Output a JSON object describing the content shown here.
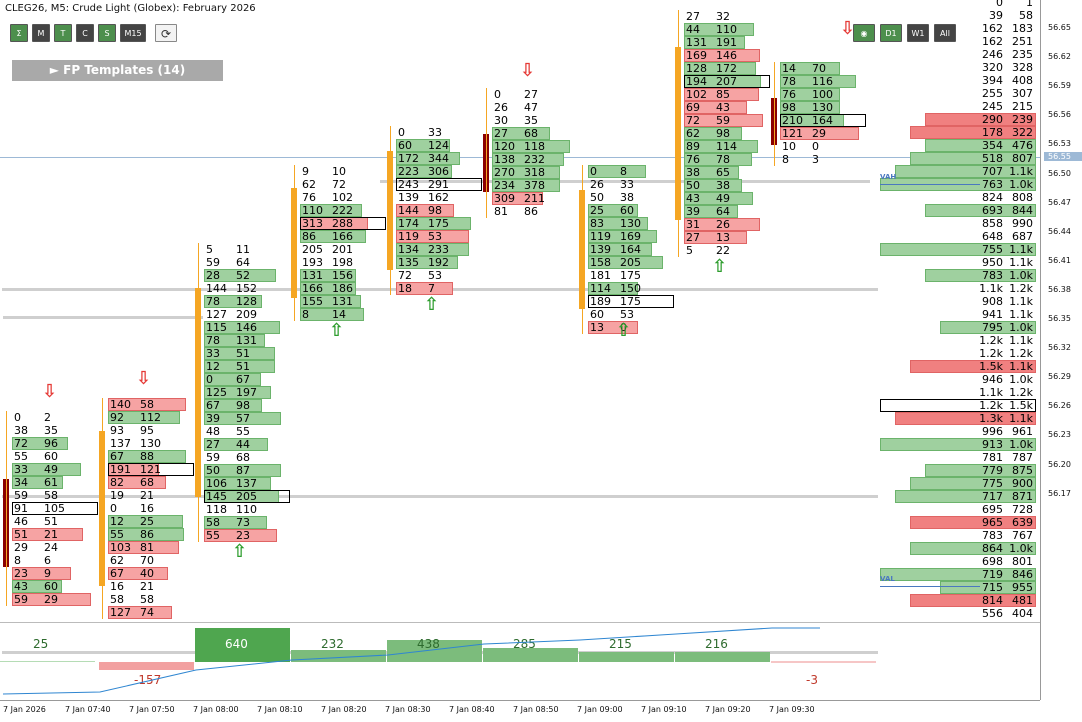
{
  "header": {
    "title": "CLEG26, M5:  Crude Light (Globex): February 2026"
  },
  "toolbar_left": [
    "Σ",
    "M",
    "T",
    "C",
    "S",
    "M15"
  ],
  "toolbar_right": [
    "◉",
    "D1",
    "W1",
    "All"
  ],
  "templates_button": "► FP Templates (14)",
  "price_axis": [
    "56.65",
    "56.62",
    "56.59",
    "56.56",
    "56.53",
    "56.50",
    "56.47",
    "56.44",
    "56.41",
    "56.38",
    "56.35",
    "56.32",
    "56.29",
    "56.26",
    "56.23",
    "56.20",
    "56.17"
  ],
  "current_price": "56.55",
  "time_axis": [
    "7 Jan 2026",
    "7 Jan 07:40",
    "7 Jan 07:50",
    "7 Jan 08:00",
    "7 Jan 08:10",
    "7 Jan 08:20",
    "7 Jan 08:30",
    "7 Jan 08:40",
    "7 Jan 08:50",
    "7 Jan 09:00",
    "7 Jan 09:10",
    "7 Jan 09:20",
    "7 Jan 09:30"
  ],
  "vah_label": "VAH",
  "val_label": "VAL",
  "colors": {
    "buy": "#5fae5f",
    "sell": "#e86060",
    "poc_line": "#000",
    "bar_body": "#f5a623",
    "down_bar": "#8b0000"
  },
  "candles": [
    {
      "cells": [
        [
          "0",
          "2"
        ],
        [
          "38",
          "35"
        ],
        [
          "72",
          "96"
        ],
        [
          "55",
          "60"
        ],
        [
          "33",
          "49"
        ],
        [
          "34",
          "61"
        ],
        [
          "59",
          "58"
        ],
        [
          "91",
          "105"
        ],
        [
          "46",
          "51"
        ],
        [
          "51",
          "21"
        ],
        [
          "29",
          "24"
        ],
        [
          "8",
          "6"
        ],
        [
          "23",
          "9"
        ],
        [
          "43",
          "60"
        ],
        [
          "59",
          "29"
        ]
      ]
    },
    {
      "cells": [
        [
          "140",
          "58"
        ],
        [
          "92",
          "112"
        ],
        [
          "93",
          "95"
        ],
        [
          "137",
          "130"
        ],
        [
          "67",
          "88"
        ],
        [
          "191",
          "121"
        ],
        [
          "82",
          "68"
        ],
        [
          "19",
          "21"
        ],
        [
          "0",
          "16"
        ],
        [
          "12",
          "25"
        ],
        [
          "55",
          "86"
        ],
        [
          "103",
          "81"
        ],
        [
          "62",
          "70"
        ],
        [
          "67",
          "40"
        ],
        [
          "16",
          "21"
        ],
        [
          "58",
          "58"
        ],
        [
          "127",
          "74"
        ]
      ]
    },
    {
      "cells": [
        [
          "5",
          "11"
        ],
        [
          "59",
          "64"
        ],
        [
          "28",
          "52"
        ],
        [
          "144",
          "152"
        ],
        [
          "78",
          "128"
        ],
        [
          "127",
          "209"
        ],
        [
          "115",
          "146"
        ],
        [
          "78",
          "131"
        ],
        [
          "33",
          "51"
        ],
        [
          "12",
          "51"
        ],
        [
          "0",
          "67"
        ],
        [
          "125",
          "197"
        ],
        [
          "67",
          "98"
        ],
        [
          "39",
          "57"
        ],
        [
          "48",
          "55"
        ],
        [
          "27",
          "44"
        ],
        [
          "59",
          "68"
        ],
        [
          "50",
          "87"
        ],
        [
          "106",
          "137"
        ],
        [
          "145",
          "205"
        ],
        [
          "118",
          "110"
        ],
        [
          "58",
          "73"
        ],
        [
          "55",
          "23"
        ]
      ]
    },
    {
      "cells": [
        [
          "9",
          "10"
        ],
        [
          "62",
          "72"
        ],
        [
          "76",
          "102"
        ],
        [
          "110",
          "222"
        ],
        [
          "313",
          "288"
        ],
        [
          "86",
          "166"
        ],
        [
          "205",
          "201"
        ],
        [
          "193",
          "198"
        ],
        [
          "131",
          "156"
        ],
        [
          "166",
          "186"
        ],
        [
          "155",
          "131"
        ],
        [
          "8",
          "14"
        ]
      ]
    },
    {
      "cells": [
        [
          "0",
          "33"
        ],
        [
          "60",
          "124"
        ],
        [
          "172",
          "344"
        ],
        [
          "223",
          "306"
        ],
        [
          "243",
          "291"
        ],
        [
          "139",
          "162"
        ],
        [
          "144",
          "98"
        ],
        [
          "174",
          "175"
        ],
        [
          "119",
          "53"
        ],
        [
          "134",
          "233"
        ],
        [
          "135",
          "192"
        ],
        [
          "72",
          "53"
        ],
        [
          "18",
          "7"
        ]
      ]
    },
    {
      "cells": [
        [
          "0",
          "27"
        ],
        [
          "26",
          "47"
        ],
        [
          "30",
          "35"
        ],
        [
          "27",
          "68"
        ],
        [
          "120",
          "118"
        ],
        [
          "138",
          "232"
        ],
        [
          "270",
          "318"
        ],
        [
          "234",
          "378"
        ],
        [
          "309",
          "211"
        ],
        [
          "81",
          "86"
        ]
      ]
    },
    {
      "cells": [
        [
          "0",
          "8"
        ],
        [
          "26",
          "33"
        ],
        [
          "50",
          "38"
        ],
        [
          "25",
          "60"
        ],
        [
          "83",
          "130"
        ],
        [
          "119",
          "169"
        ],
        [
          "139",
          "164"
        ],
        [
          "158",
          "205"
        ],
        [
          "181",
          "175"
        ],
        [
          "114",
          "150"
        ],
        [
          "189",
          "175"
        ],
        [
          "60",
          "53"
        ],
        [
          "13",
          "0"
        ]
      ]
    },
    {
      "cells": [
        [
          "27",
          "32"
        ],
        [
          "44",
          "110"
        ],
        [
          "131",
          "191"
        ],
        [
          "169",
          "146"
        ],
        [
          "128",
          "172"
        ],
        [
          "194",
          "207"
        ],
        [
          "102",
          "85"
        ],
        [
          "69",
          "43"
        ],
        [
          "72",
          "59"
        ],
        [
          "62",
          "98"
        ],
        [
          "89",
          "114"
        ],
        [
          "76",
          "78"
        ],
        [
          "38",
          "65"
        ],
        [
          "50",
          "38"
        ],
        [
          "43",
          "49"
        ],
        [
          "39",
          "64"
        ],
        [
          "31",
          "26"
        ],
        [
          "27",
          "13"
        ],
        [
          "5",
          "22"
        ]
      ]
    },
    {
      "cells": [
        [
          "14",
          "70"
        ],
        [
          "78",
          "116"
        ],
        [
          "76",
          "100"
        ],
        [
          "98",
          "130"
        ],
        [
          "210",
          "164"
        ],
        [
          "121",
          "29"
        ],
        [
          "10",
          "0"
        ],
        [
          "8",
          "3"
        ]
      ]
    }
  ],
  "volume_profile": [
    [
      "0",
      "1"
    ],
    [
      "39",
      "58"
    ],
    [
      "162",
      "183"
    ],
    [
      "162",
      "251"
    ],
    [
      "246",
      "235"
    ],
    [
      "320",
      "328"
    ],
    [
      "394",
      "408"
    ],
    [
      "255",
      "307"
    ],
    [
      "245",
      "215"
    ],
    [
      "290",
      "239"
    ],
    [
      "178",
      "322"
    ],
    [
      "354",
      "476"
    ],
    [
      "518",
      "807"
    ],
    [
      "707",
      "1.1k"
    ],
    [
      "763",
      "1.0k"
    ],
    [
      "824",
      "808"
    ],
    [
      "693",
      "844"
    ],
    [
      "858",
      "990"
    ],
    [
      "648",
      "687"
    ],
    [
      "755",
      "1.1k"
    ],
    [
      "950",
      "1.1k"
    ],
    [
      "783",
      "1.0k"
    ],
    [
      "1.1k",
      "1.2k"
    ],
    [
      "908",
      "1.1k"
    ],
    [
      "941",
      "1.1k"
    ],
    [
      "795",
      "1.0k"
    ],
    [
      "1.2k",
      "1.1k"
    ],
    [
      "1.2k",
      "1.2k"
    ],
    [
      "1.5k",
      "1.1k"
    ],
    [
      "946",
      "1.0k"
    ],
    [
      "1.1k",
      "1.2k"
    ],
    [
      "1.2k",
      "1.5k"
    ],
    [
      "1.3k",
      "1.1k"
    ],
    [
      "996",
      "961"
    ],
    [
      "913",
      "1.0k"
    ],
    [
      "781",
      "787"
    ],
    [
      "779",
      "875"
    ],
    [
      "775",
      "900"
    ],
    [
      "717",
      "871"
    ],
    [
      "695",
      "728"
    ],
    [
      "965",
      "639"
    ],
    [
      "783",
      "767"
    ],
    [
      "864",
      "1.0k"
    ],
    [
      "698",
      "801"
    ],
    [
      "719",
      "846"
    ],
    [
      "715",
      "955"
    ],
    [
      "814",
      "481"
    ],
    [
      "556",
      "404"
    ]
  ],
  "volume_bars": [
    "25",
    "",
    "640",
    "232",
    "438",
    "285",
    "215",
    "216",
    ""
  ],
  "deltas": [
    "",
    "-157",
    "",
    "",
    "",
    "",
    "",
    "",
    "-3"
  ]
}
